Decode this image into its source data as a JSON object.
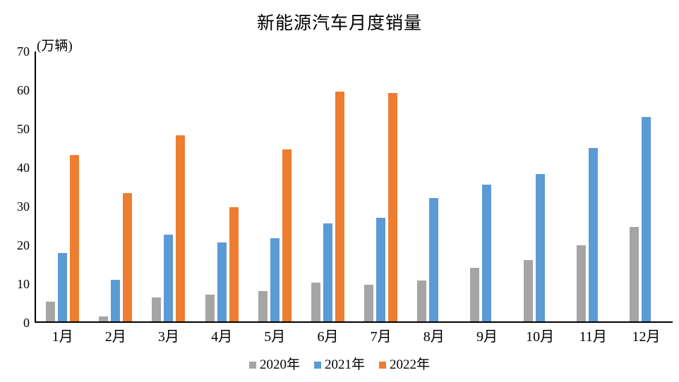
{
  "title": "新能源汽车月度销量",
  "unit_label": "(万辆)",
  "chart_data": {
    "type": "bar",
    "title": "新能源汽车月度销量",
    "ylabel": "(万辆)",
    "xlabel": "",
    "categories": [
      "1月",
      "2月",
      "3月",
      "4月",
      "5月",
      "6月",
      "7月",
      "8月",
      "9月",
      "10月",
      "11月",
      "12月"
    ],
    "series": [
      {
        "name": "2020年",
        "color": "#A5A5A5",
        "values": [
          5.4,
          1.6,
          6.5,
          7.2,
          8.2,
          10.4,
          9.8,
          10.9,
          14.2,
          16.1,
          20.0,
          24.8
        ]
      },
      {
        "name": "2021年",
        "color": "#5B9BD5",
        "values": [
          18.0,
          11.1,
          22.7,
          20.7,
          21.8,
          25.6,
          27.1,
          32.1,
          35.7,
          38.4,
          45.1,
          53.1
        ]
      },
      {
        "name": "2022年",
        "color": "#ED7D31",
        "values": [
          43.2,
          33.4,
          48.4,
          29.9,
          44.7,
          59.6,
          59.3,
          null,
          null,
          null,
          null,
          null
        ]
      }
    ],
    "ylim": [
      0,
      70
    ],
    "y_ticks": [
      0,
      10,
      20,
      30,
      40,
      50,
      60,
      70
    ],
    "grid": false,
    "legend_position": "bottom",
    "axis_color": "#000000",
    "background_color": "#FFFFFF"
  }
}
